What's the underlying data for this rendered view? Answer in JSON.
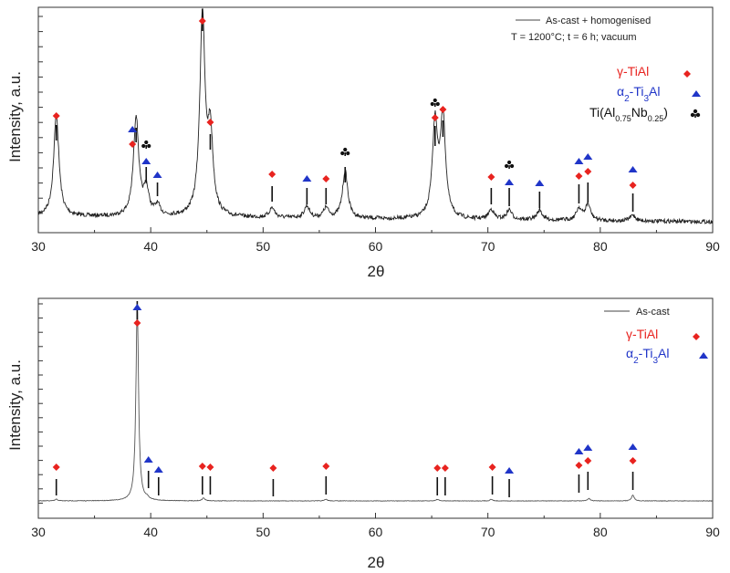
{
  "x_axis_label": "2θ",
  "y_axis_label": "Intensity, a.u.",
  "colors": {
    "gamma": "#e8231f",
    "alpha2": "#2035c8",
    "tinb": "#111111",
    "trace": "#222222"
  },
  "chart_data": [
    {
      "type": "line",
      "xlabel": "2θ",
      "ylabel": "Intensity, a.u.",
      "xlim": [
        30,
        90
      ],
      "xticks": [
        30,
        40,
        50,
        60,
        70,
        80,
        90
      ],
      "legend_placement": "top-right",
      "series": [
        {
          "name": "As-cast + homogenised",
          "note_line": "T = 1200°C; t = 6 h; vacuum"
        }
      ],
      "peaks": [
        {
          "x": 31.6,
          "h": 0.51
        },
        {
          "x": 38.7,
          "h": 0.5
        },
        {
          "x": 39.6,
          "h": 0.13
        },
        {
          "x": 40.6,
          "h": 0.05
        },
        {
          "x": 44.6,
          "h": 1.0
        },
        {
          "x": 45.3,
          "h": 0.4
        },
        {
          "x": 50.8,
          "h": 0.05
        },
        {
          "x": 53.9,
          "h": 0.06
        },
        {
          "x": 55.6,
          "h": 0.05
        },
        {
          "x": 57.3,
          "h": 0.24
        },
        {
          "x": 65.3,
          "h": 0.47
        },
        {
          "x": 66.0,
          "h": 0.5
        },
        {
          "x": 70.3,
          "h": 0.05
        },
        {
          "x": 71.9,
          "h": 0.05
        },
        {
          "x": 74.6,
          "h": 0.05
        },
        {
          "x": 78.1,
          "h": 0.06
        },
        {
          "x": 78.9,
          "h": 0.08
        },
        {
          "x": 82.9,
          "h": 0.03
        }
      ],
      "phases": [
        {
          "key": "gamma",
          "label": "γ-TiAl",
          "shape": "diamond"
        },
        {
          "key": "alpha2",
          "label": "α2-Ti3Al",
          "label_parts": [
            "α",
            "2",
            "-Ti",
            "3",
            "Al"
          ],
          "shape": "triangle"
        },
        {
          "key": "tinb",
          "label": "Ti(Al0.75Nb0.25)",
          "label_parts": [
            "Ti(Al",
            "0.75",
            "Nb",
            "0.25",
            ")"
          ],
          "shape": "club"
        }
      ],
      "markers": [
        {
          "x": 31.6,
          "phases": [
            "gamma"
          ]
        },
        {
          "x": 38.7,
          "phases": [
            "alpha2",
            "gamma"
          ]
        },
        {
          "x": 39.6,
          "phases": [
            "alpha2",
            "tinb"
          ]
        },
        {
          "x": 40.6,
          "phases": [
            "alpha2"
          ]
        },
        {
          "x": 44.6,
          "phases": [
            "gamma"
          ]
        },
        {
          "x": 45.3,
          "phases": [
            "gamma"
          ]
        },
        {
          "x": 50.8,
          "phases": [
            "gamma"
          ]
        },
        {
          "x": 53.9,
          "phases": [
            "alpha2"
          ]
        },
        {
          "x": 55.6,
          "phases": [
            "gamma"
          ]
        },
        {
          "x": 57.3,
          "phases": [
            "tinb"
          ]
        },
        {
          "x": 65.3,
          "phases": [
            "gamma",
            "tinb"
          ]
        },
        {
          "x": 66.0,
          "phases": [
            "gamma"
          ]
        },
        {
          "x": 70.3,
          "phases": [
            "gamma"
          ]
        },
        {
          "x": 71.9,
          "phases": [
            "alpha2",
            "tinb"
          ]
        },
        {
          "x": 74.6,
          "phases": [
            "alpha2"
          ]
        },
        {
          "x": 78.1,
          "phases": [
            "gamma",
            "alpha2"
          ]
        },
        {
          "x": 78.9,
          "phases": [
            "gamma",
            "alpha2"
          ]
        },
        {
          "x": 82.9,
          "phases": [
            "gamma",
            "alpha2"
          ]
        }
      ]
    },
    {
      "type": "line",
      "xlabel": "2θ",
      "ylabel": "Intensity, a.u.",
      "xlim": [
        30,
        90
      ],
      "xticks": [
        30,
        40,
        50,
        60,
        70,
        80,
        90
      ],
      "legend_placement": "top-right",
      "series": [
        {
          "name": "As-cast"
        }
      ],
      "peaks": [
        {
          "x": 38.8,
          "h": 1.0
        },
        {
          "x": 31.6,
          "h": 0.008
        },
        {
          "x": 39.7,
          "h": 0.01
        },
        {
          "x": 44.7,
          "h": 0.015
        },
        {
          "x": 55.6,
          "h": 0.008
        },
        {
          "x": 65.5,
          "h": 0.008
        },
        {
          "x": 70.3,
          "h": 0.008
        },
        {
          "x": 79.0,
          "h": 0.012
        },
        {
          "x": 82.9,
          "h": 0.03
        }
      ],
      "phases": [
        {
          "key": "gamma",
          "label": "γ-TiAl",
          "shape": "diamond"
        },
        {
          "key": "alpha2",
          "label": "α2-Ti3Al",
          "label_parts": [
            "α",
            "2",
            "-Ti",
            "3",
            "Al"
          ],
          "shape": "triangle"
        }
      ],
      "markers": [
        {
          "x": 31.6,
          "phases": [
            "gamma"
          ]
        },
        {
          "x": 38.8,
          "phases": [
            "alpha2",
            "gamma"
          ]
        },
        {
          "x": 39.8,
          "phases": [
            "alpha2"
          ]
        },
        {
          "x": 40.7,
          "phases": [
            "alpha2"
          ]
        },
        {
          "x": 44.6,
          "phases": [
            "gamma"
          ]
        },
        {
          "x": 45.3,
          "phases": [
            "gamma"
          ]
        },
        {
          "x": 50.9,
          "phases": [
            "gamma"
          ]
        },
        {
          "x": 55.6,
          "phases": [
            "gamma"
          ]
        },
        {
          "x": 65.5,
          "phases": [
            "gamma"
          ]
        },
        {
          "x": 66.2,
          "phases": [
            "gamma"
          ]
        },
        {
          "x": 70.4,
          "phases": [
            "gamma"
          ]
        },
        {
          "x": 71.9,
          "phases": [
            "alpha2"
          ]
        },
        {
          "x": 78.1,
          "phases": [
            "gamma",
            "alpha2"
          ]
        },
        {
          "x": 78.9,
          "phases": [
            "gamma",
            "alpha2"
          ]
        },
        {
          "x": 82.9,
          "phases": [
            "gamma",
            "alpha2"
          ]
        }
      ]
    }
  ]
}
